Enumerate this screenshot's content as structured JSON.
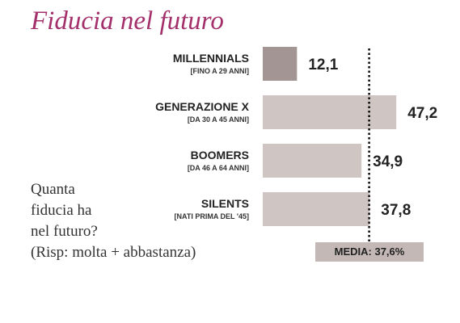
{
  "title": "Fiducia nel futuro",
  "question": [
    "Quanta",
    "fiducia ha",
    "nel futuro?",
    "(Risp: molta + abbastanza)"
  ],
  "media_label": "MEDIA: 37,6%",
  "colors": {
    "title": "#a3306a",
    "highlight_bar": "#a29593",
    "bar": "#cfc6c4",
    "media_box": "#c3b8b5"
  },
  "chart_data": {
    "type": "bar",
    "orientation": "horizontal",
    "title": "Fiducia nel futuro",
    "categories": [
      "MILLENNIALS",
      "GENERAZIONE X",
      "BOOMERS",
      "SILENTS"
    ],
    "subcategories": [
      "[FINO A 29 ANNI]",
      "[DA 30 A 45 ANNI]",
      "[DA 46 A 64 ANNI]",
      "[NATI PRIMA DEL '45]"
    ],
    "values": [
      12.1,
      47.2,
      34.9,
      37.8
    ],
    "value_labels": [
      "12,1",
      "47,2",
      "34,9",
      "37,8"
    ],
    "highlight_index": 0,
    "reference_line": {
      "value": 37.6,
      "label": "MEDIA: 37,6%",
      "style": "dotted"
    },
    "xlim": [
      0,
      50
    ],
    "grid": false
  }
}
